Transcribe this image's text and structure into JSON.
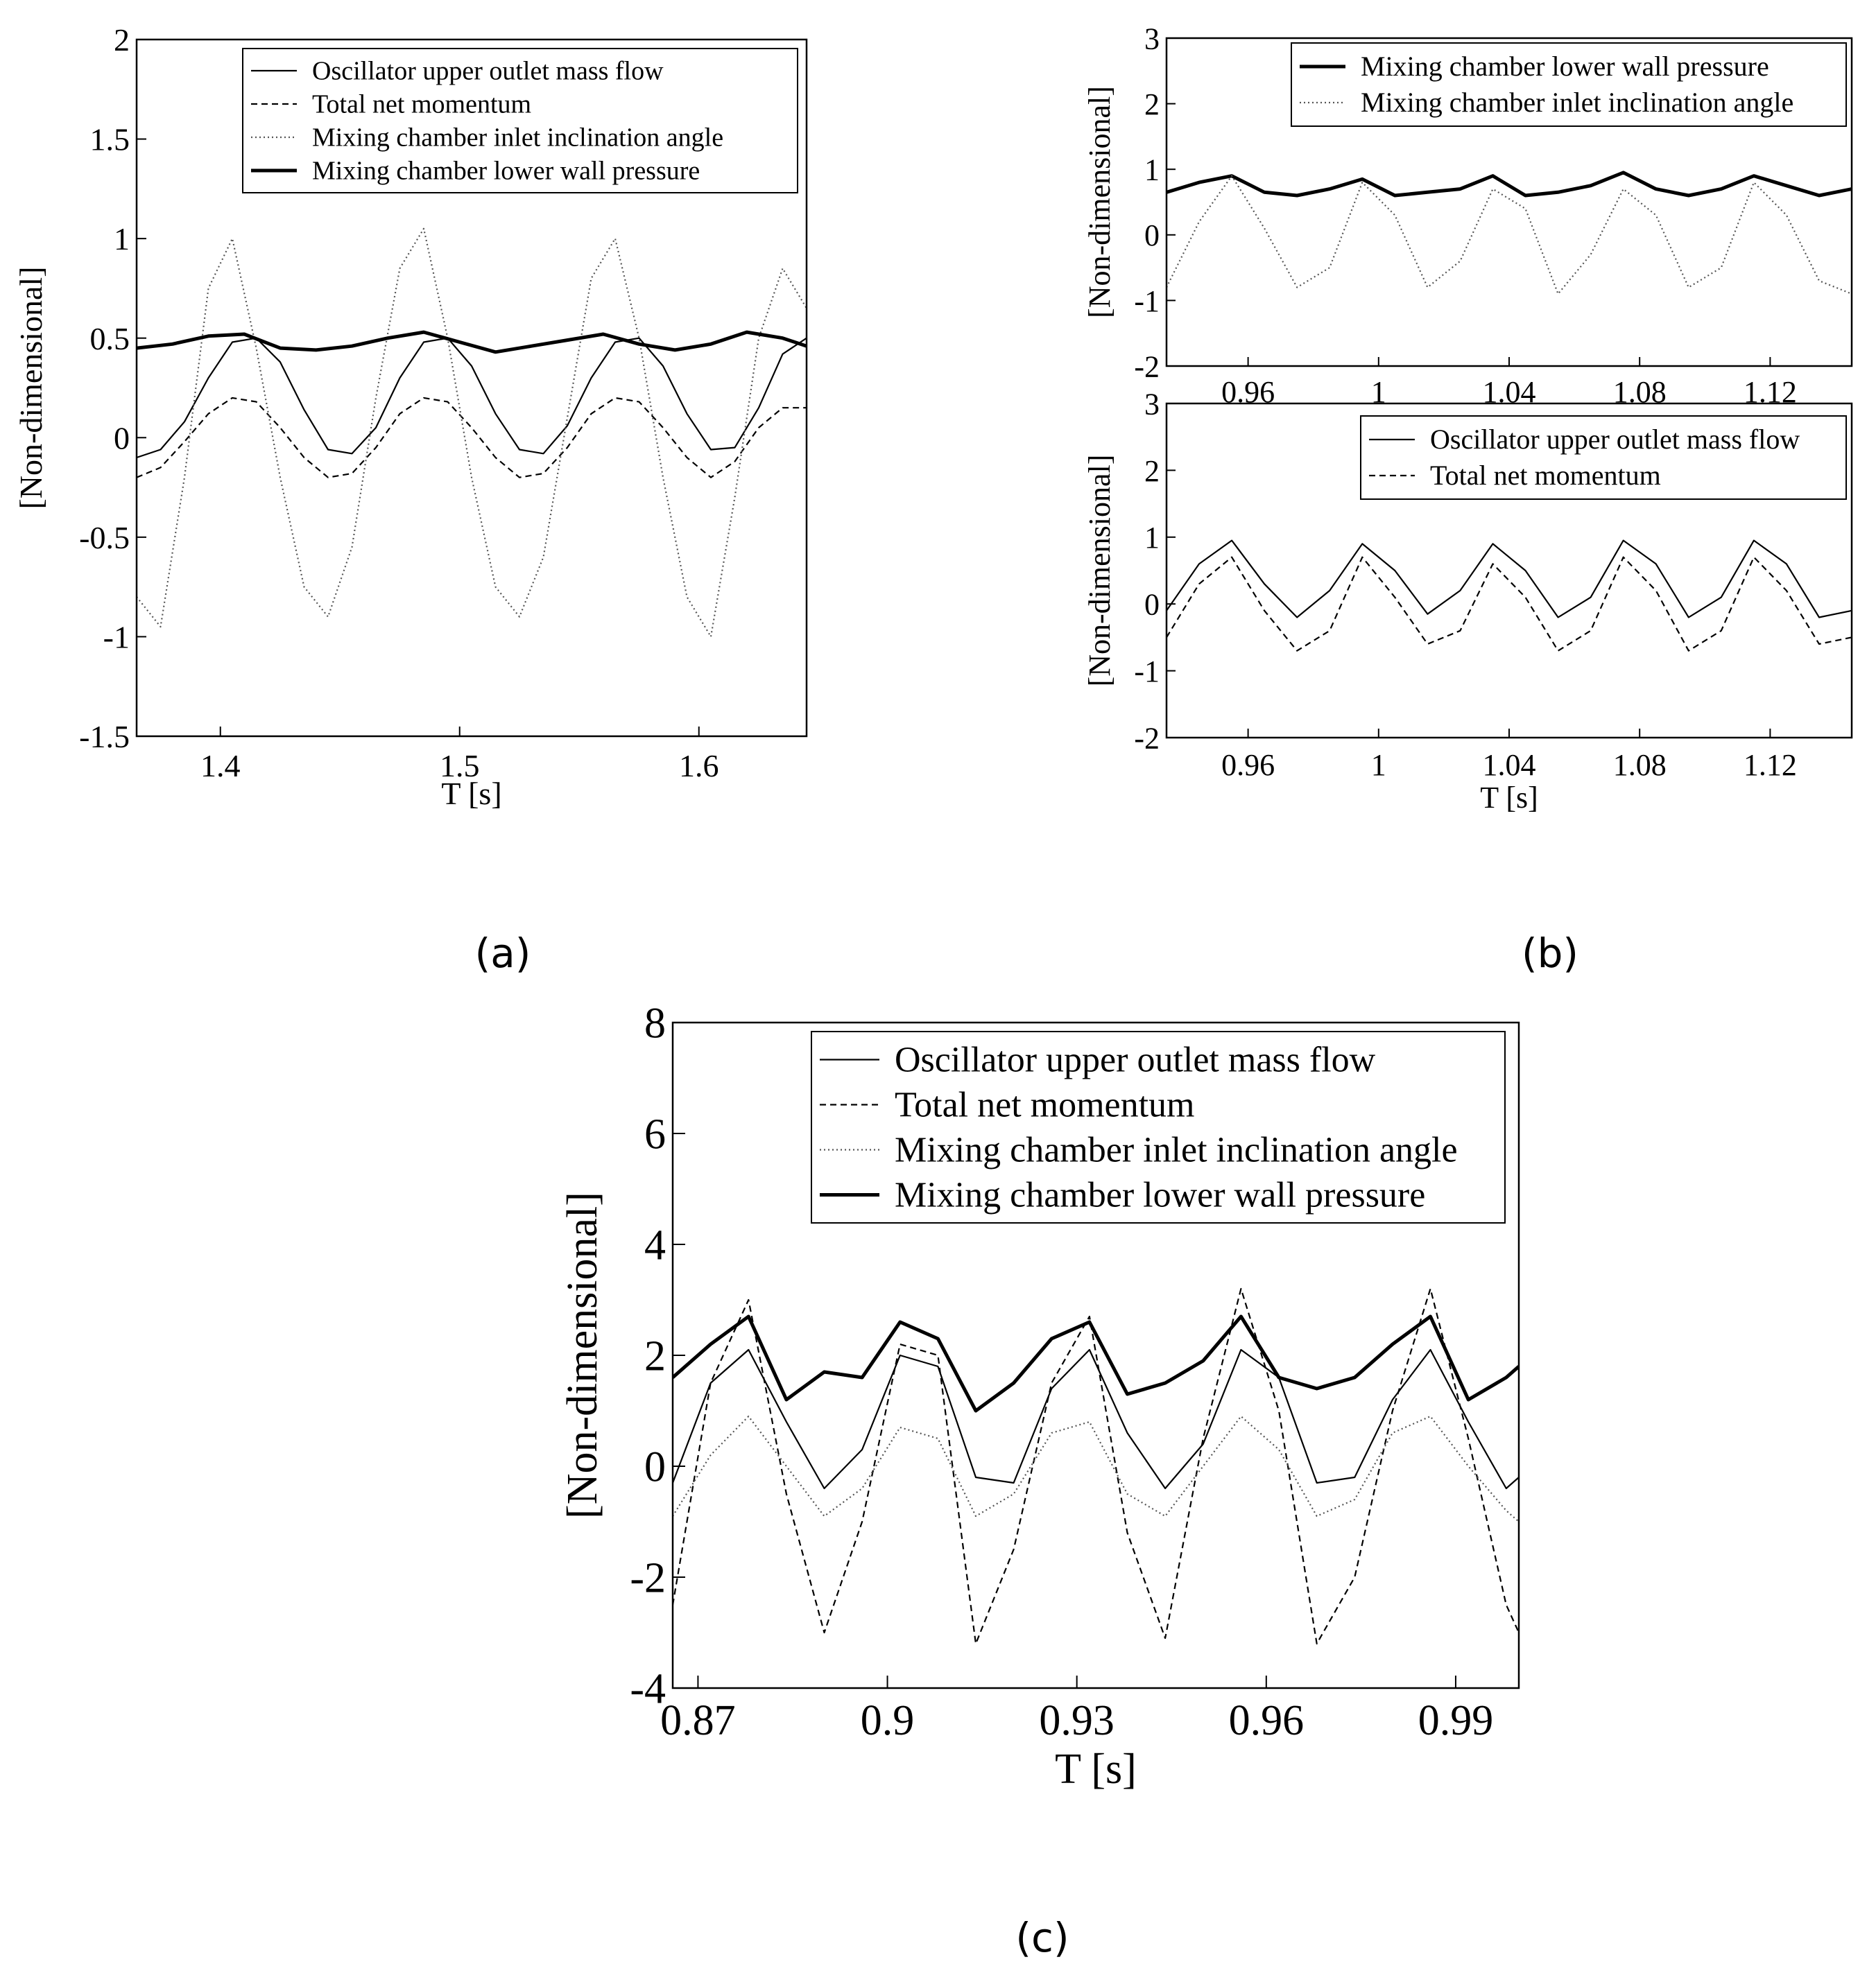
{
  "figure": {
    "captions": {
      "a": "(a)",
      "b": "(b)",
      "c": "(c)"
    }
  },
  "chart_data": [
    {
      "id": "a",
      "type": "line",
      "title": "",
      "xlabel": "T [s]",
      "ylabel": "[Non-dimensional]",
      "xlim": [
        1.365,
        1.645
      ],
      "ylim": [
        -1.5,
        2
      ],
      "xticks": [
        1.4,
        1.5,
        1.6
      ],
      "xtick_labels": [
        "1.4",
        "1.5",
        "1.6"
      ],
      "yticks": [
        -1.5,
        -1,
        -0.5,
        0,
        0.5,
        1,
        1.5,
        2
      ],
      "ytick_labels": [
        "-1.5",
        "-1",
        "-0.5",
        "0",
        "0.5",
        "1",
        "1.5",
        "2"
      ],
      "legend": "top-right",
      "series": [
        {
          "name": "Oscillator upper outlet mass flow",
          "style": "solid",
          "x": [
            1.365,
            1.375,
            1.385,
            1.395,
            1.405,
            1.415,
            1.425,
            1.435,
            1.445,
            1.455,
            1.465,
            1.475,
            1.485,
            1.495,
            1.505,
            1.515,
            1.525,
            1.535,
            1.545,
            1.555,
            1.565,
            1.575,
            1.585,
            1.595,
            1.605,
            1.615,
            1.625,
            1.635,
            1.645
          ],
          "values": [
            -0.1,
            -0.06,
            0.08,
            0.3,
            0.48,
            0.5,
            0.38,
            0.14,
            -0.06,
            -0.08,
            0.05,
            0.3,
            0.48,
            0.5,
            0.36,
            0.12,
            -0.06,
            -0.08,
            0.06,
            0.3,
            0.48,
            0.5,
            0.36,
            0.12,
            -0.06,
            -0.05,
            0.15,
            0.42,
            0.5
          ]
        },
        {
          "name": "Total net momentum",
          "style": "dashed",
          "x": [
            1.365,
            1.375,
            1.385,
            1.395,
            1.405,
            1.415,
            1.425,
            1.435,
            1.445,
            1.455,
            1.465,
            1.475,
            1.485,
            1.495,
            1.505,
            1.515,
            1.525,
            1.535,
            1.545,
            1.555,
            1.565,
            1.575,
            1.585,
            1.595,
            1.605,
            1.615,
            1.625,
            1.635,
            1.645
          ],
          "values": [
            -0.2,
            -0.15,
            -0.02,
            0.12,
            0.2,
            0.18,
            0.05,
            -0.1,
            -0.2,
            -0.18,
            -0.05,
            0.12,
            0.2,
            0.18,
            0.05,
            -0.1,
            -0.2,
            -0.18,
            -0.05,
            0.12,
            0.2,
            0.18,
            0.05,
            -0.1,
            -0.2,
            -0.12,
            0.05,
            0.15,
            0.15
          ]
        },
        {
          "name": "Mixing chamber inlet inclination angle",
          "style": "dotted",
          "x": [
            1.365,
            1.375,
            1.385,
            1.395,
            1.405,
            1.415,
            1.425,
            1.435,
            1.445,
            1.455,
            1.465,
            1.475,
            1.485,
            1.495,
            1.505,
            1.515,
            1.525,
            1.535,
            1.545,
            1.555,
            1.565,
            1.575,
            1.585,
            1.595,
            1.605,
            1.615,
            1.625,
            1.635,
            1.645
          ],
          "values": [
            -0.8,
            -0.95,
            -0.2,
            0.75,
            1.0,
            0.45,
            -0.2,
            -0.75,
            -0.9,
            -0.55,
            0.2,
            0.85,
            1.05,
            0.5,
            -0.2,
            -0.75,
            -0.9,
            -0.6,
            0.1,
            0.8,
            1.0,
            0.5,
            -0.2,
            -0.8,
            -1.0,
            -0.3,
            0.5,
            0.85,
            0.65
          ]
        },
        {
          "name": "Mixing chamber lower wall pressure",
          "style": "thick",
          "x": [
            1.365,
            1.38,
            1.395,
            1.41,
            1.425,
            1.44,
            1.455,
            1.47,
            1.485,
            1.5,
            1.515,
            1.53,
            1.545,
            1.56,
            1.575,
            1.59,
            1.605,
            1.62,
            1.635,
            1.645
          ],
          "values": [
            0.45,
            0.47,
            0.51,
            0.52,
            0.45,
            0.44,
            0.46,
            0.5,
            0.53,
            0.48,
            0.43,
            0.46,
            0.49,
            0.52,
            0.47,
            0.44,
            0.47,
            0.53,
            0.5,
            0.46
          ]
        }
      ]
    },
    {
      "id": "b-top",
      "type": "line",
      "title": "",
      "xlabel": "",
      "ylabel": "[Non-dimensional]",
      "xlim": [
        0.935,
        1.145
      ],
      "ylim": [
        -2,
        3
      ],
      "xticks": [
        0.96,
        1.0,
        1.04,
        1.08,
        1.12
      ],
      "xtick_labels": [
        "0.96",
        "1",
        "1.04",
        "1.08",
        "1.12"
      ],
      "yticks": [
        -2,
        -1,
        0,
        1,
        2,
        3
      ],
      "ytick_labels": [
        "-2",
        "-1",
        "0",
        "1",
        "2",
        "3"
      ],
      "legend": "top-right",
      "series": [
        {
          "name": "Mixing chamber lower wall pressure",
          "style": "thick",
          "x": [
            0.935,
            0.945,
            0.955,
            0.965,
            0.975,
            0.985,
            0.995,
            1.005,
            1.015,
            1.025,
            1.035,
            1.045,
            1.055,
            1.065,
            1.075,
            1.085,
            1.095,
            1.105,
            1.115,
            1.125,
            1.135,
            1.145
          ],
          "values": [
            0.65,
            0.8,
            0.9,
            0.65,
            0.6,
            0.7,
            0.85,
            0.6,
            0.65,
            0.7,
            0.9,
            0.6,
            0.65,
            0.75,
            0.95,
            0.7,
            0.6,
            0.7,
            0.9,
            0.75,
            0.6,
            0.7
          ]
        },
        {
          "name": "Mixing chamber inlet inclination angle",
          "style": "dotted",
          "x": [
            0.935,
            0.945,
            0.955,
            0.965,
            0.975,
            0.985,
            0.995,
            1.005,
            1.015,
            1.025,
            1.035,
            1.045,
            1.055,
            1.065,
            1.075,
            1.085,
            1.095,
            1.105,
            1.115,
            1.125,
            1.135,
            1.145
          ],
          "values": [
            -0.8,
            0.2,
            0.9,
            0.1,
            -0.8,
            -0.5,
            0.8,
            0.3,
            -0.8,
            -0.4,
            0.7,
            0.4,
            -0.9,
            -0.3,
            0.7,
            0.3,
            -0.8,
            -0.5,
            0.8,
            0.3,
            -0.7,
            -0.9
          ]
        }
      ]
    },
    {
      "id": "b-bottom",
      "type": "line",
      "title": "",
      "xlabel": "T [s]",
      "ylabel": "[Non-dimensional]",
      "xlim": [
        0.935,
        1.145
      ],
      "ylim": [
        -2,
        3
      ],
      "xticks": [
        0.96,
        1.0,
        1.04,
        1.08,
        1.12
      ],
      "xtick_labels": [
        "0.96",
        "1",
        "1.04",
        "1.08",
        "1.12"
      ],
      "yticks": [
        -2,
        -1,
        0,
        1,
        2,
        3
      ],
      "ytick_labels": [
        "-2",
        "-1",
        "0",
        "1",
        "2",
        "3"
      ],
      "legend": "top-right",
      "series": [
        {
          "name": "Oscillator upper outlet mass flow",
          "style": "solid",
          "x": [
            0.935,
            0.945,
            0.955,
            0.965,
            0.975,
            0.985,
            0.995,
            1.005,
            1.015,
            1.025,
            1.035,
            1.045,
            1.055,
            1.065,
            1.075,
            1.085,
            1.095,
            1.105,
            1.115,
            1.125,
            1.135,
            1.145
          ],
          "values": [
            -0.1,
            0.6,
            0.95,
            0.3,
            -0.2,
            0.2,
            0.9,
            0.5,
            -0.15,
            0.2,
            0.9,
            0.5,
            -0.2,
            0.1,
            0.95,
            0.6,
            -0.2,
            0.1,
            0.95,
            0.6,
            -0.2,
            -0.1
          ]
        },
        {
          "name": "Total net momentum",
          "style": "dashed",
          "x": [
            0.935,
            0.945,
            0.955,
            0.965,
            0.975,
            0.985,
            0.995,
            1.005,
            1.015,
            1.025,
            1.035,
            1.045,
            1.055,
            1.065,
            1.075,
            1.085,
            1.095,
            1.105,
            1.115,
            1.125,
            1.135,
            1.145
          ],
          "values": [
            -0.5,
            0.3,
            0.7,
            -0.1,
            -0.7,
            -0.4,
            0.7,
            0.1,
            -0.6,
            -0.4,
            0.6,
            0.1,
            -0.7,
            -0.4,
            0.7,
            0.2,
            -0.7,
            -0.4,
            0.7,
            0.2,
            -0.6,
            -0.5
          ]
        }
      ]
    },
    {
      "id": "c",
      "type": "line",
      "title": "",
      "xlabel": "T [s]",
      "ylabel": "[Non-dimensional]",
      "xlim": [
        0.866,
        1.0
      ],
      "ylim": [
        -4,
        8
      ],
      "xticks": [
        0.87,
        0.9,
        0.93,
        0.96,
        0.99
      ],
      "xtick_labels": [
        "0.87",
        "0.9",
        "0.93",
        "0.96",
        "0.99"
      ],
      "yticks": [
        -4,
        -2,
        0,
        2,
        4,
        6,
        8
      ],
      "ytick_labels": [
        "-4",
        "-2",
        "0",
        "2",
        "4",
        "6",
        "8"
      ],
      "legend": "top-right",
      "series": [
        {
          "name": "Oscillator upper outlet mass flow",
          "style": "solid",
          "x": [
            0.866,
            0.872,
            0.878,
            0.884,
            0.89,
            0.896,
            0.902,
            0.908,
            0.914,
            0.92,
            0.926,
            0.932,
            0.938,
            0.944,
            0.95,
            0.956,
            0.962,
            0.968,
            0.974,
            0.98,
            0.986,
            0.992,
            0.998,
            1.0
          ],
          "values": [
            -0.3,
            1.5,
            2.1,
            0.8,
            -0.4,
            0.3,
            2.0,
            1.8,
            -0.2,
            -0.3,
            1.4,
            2.1,
            0.6,
            -0.4,
            0.4,
            2.1,
            1.6,
            -0.3,
            -0.2,
            1.2,
            2.1,
            0.8,
            -0.4,
            -0.2
          ]
        },
        {
          "name": "Total net momentum",
          "style": "dashed",
          "x": [
            0.866,
            0.872,
            0.878,
            0.884,
            0.89,
            0.896,
            0.902,
            0.908,
            0.914,
            0.92,
            0.926,
            0.932,
            0.938,
            0.944,
            0.95,
            0.956,
            0.962,
            0.968,
            0.974,
            0.98,
            0.986,
            0.992,
            0.998,
            1.0
          ],
          "values": [
            -2.5,
            1.5,
            3.0,
            -0.5,
            -3.0,
            -1.0,
            2.2,
            2.0,
            -3.2,
            -1.5,
            1.5,
            2.7,
            -1.2,
            -3.1,
            0.5,
            3.2,
            1.0,
            -3.2,
            -2.0,
            1.0,
            3.2,
            0.5,
            -2.5,
            -3.0
          ]
        },
        {
          "name": "Mixing chamber inlet inclination angle",
          "style": "dotted",
          "x": [
            0.866,
            0.872,
            0.878,
            0.884,
            0.89,
            0.896,
            0.902,
            0.908,
            0.914,
            0.92,
            0.926,
            0.932,
            0.938,
            0.944,
            0.95,
            0.956,
            0.962,
            0.968,
            0.974,
            0.98,
            0.986,
            0.992,
            0.998,
            1.0
          ],
          "values": [
            -0.9,
            0.2,
            0.9,
            0.0,
            -0.9,
            -0.4,
            0.7,
            0.5,
            -0.9,
            -0.5,
            0.6,
            0.8,
            -0.5,
            -0.9,
            0.0,
            0.9,
            0.3,
            -0.9,
            -0.6,
            0.6,
            0.9,
            0.0,
            -0.8,
            -1.0
          ]
        },
        {
          "name": "Mixing chamber lower wall pressure",
          "style": "thick",
          "x": [
            0.866,
            0.872,
            0.878,
            0.884,
            0.89,
            0.896,
            0.902,
            0.908,
            0.914,
            0.92,
            0.926,
            0.932,
            0.938,
            0.944,
            0.95,
            0.956,
            0.962,
            0.968,
            0.974,
            0.98,
            0.986,
            0.992,
            0.998,
            1.0
          ],
          "values": [
            1.6,
            2.2,
            2.7,
            1.2,
            1.7,
            1.6,
            2.6,
            2.3,
            1.0,
            1.5,
            2.3,
            2.6,
            1.3,
            1.5,
            1.9,
            2.7,
            1.6,
            1.4,
            1.6,
            2.2,
            2.7,
            1.2,
            1.6,
            1.8
          ]
        }
      ]
    }
  ]
}
